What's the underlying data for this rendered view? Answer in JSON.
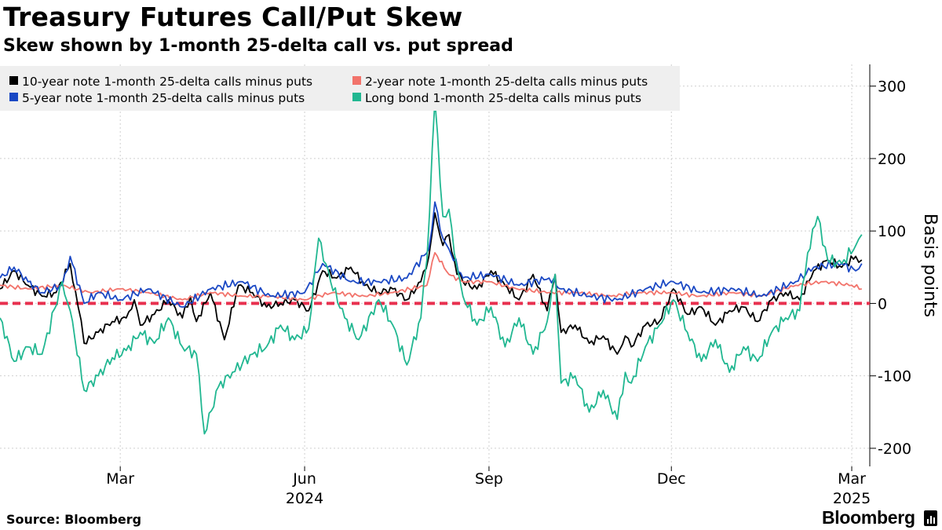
{
  "title": "Treasury Futures Call/Put Skew",
  "subtitle": "Skew shown by 1-month 25-delta call vs. put spread",
  "source": "Source: Bloomberg",
  "brand": "Bloomberg",
  "chart_data": {
    "type": "line",
    "ylabel": "Basis points",
    "ylim": [
      -225,
      330
    ],
    "yticks": [
      -200,
      -100,
      0,
      100,
      200,
      300
    ],
    "ytick_labels": [
      "-200",
      "-100",
      "0",
      "100",
      "200",
      "300"
    ],
    "x_domain": [
      "2024-01-01",
      "2025-03-10"
    ],
    "month_ticks": [
      {
        "date": "2024-03-01",
        "label": "Mar"
      },
      {
        "date": "2024-06-01",
        "label": "Jun"
      },
      {
        "date": "2024-09-01",
        "label": "Sep"
      },
      {
        "date": "2024-12-01",
        "label": "Dec"
      },
      {
        "date": "2025-03-01",
        "label": "Mar"
      }
    ],
    "year_ticks": [
      {
        "date": "2024-06-01",
        "label": "2024"
      },
      {
        "date": "2025-03-01",
        "label": "2025"
      }
    ],
    "reference_line": {
      "value": 0,
      "color": "#e8314f"
    },
    "legend_position": "top-left",
    "colors": {
      "ten_year": "#000000",
      "two_year": "#f2736b",
      "five_year": "#1a48c4",
      "long_bond": "#21b791"
    },
    "series": [
      {
        "name": "10-year note 1-month 25-delta calls minus puts",
        "color": "#000000",
        "points": [
          [
            "2024-01-01",
            20
          ],
          [
            "2024-01-08",
            45
          ],
          [
            "2024-01-15",
            25
          ],
          [
            "2024-01-22",
            10
          ],
          [
            "2024-01-29",
            15
          ],
          [
            "2024-02-05",
            55
          ],
          [
            "2024-02-09",
            -5
          ],
          [
            "2024-02-12",
            -55
          ],
          [
            "2024-02-19",
            -40
          ],
          [
            "2024-02-26",
            -25
          ],
          [
            "2024-03-04",
            -20
          ],
          [
            "2024-03-08",
            5
          ],
          [
            "2024-03-11",
            -30
          ],
          [
            "2024-03-18",
            -15
          ],
          [
            "2024-03-25",
            5
          ],
          [
            "2024-04-01",
            -20
          ],
          [
            "2024-04-05",
            10
          ],
          [
            "2024-04-08",
            -25
          ],
          [
            "2024-04-15",
            15
          ],
          [
            "2024-04-22",
            -50
          ],
          [
            "2024-04-29",
            25
          ],
          [
            "2024-05-06",
            15
          ],
          [
            "2024-05-13",
            -5
          ],
          [
            "2024-05-20",
            0
          ],
          [
            "2024-05-27",
            5
          ],
          [
            "2024-06-03",
            -10
          ],
          [
            "2024-06-10",
            45
          ],
          [
            "2024-06-17",
            35
          ],
          [
            "2024-06-24",
            50
          ],
          [
            "2024-07-01",
            25
          ],
          [
            "2024-07-08",
            15
          ],
          [
            "2024-07-15",
            20
          ],
          [
            "2024-07-22",
            5
          ],
          [
            "2024-07-29",
            30
          ],
          [
            "2024-08-02",
            65
          ],
          [
            "2024-08-05",
            125
          ],
          [
            "2024-08-09",
            80
          ],
          [
            "2024-08-12",
            95
          ],
          [
            "2024-08-16",
            40
          ],
          [
            "2024-08-19",
            30
          ],
          [
            "2024-08-26",
            20
          ],
          [
            "2024-09-02",
            45
          ],
          [
            "2024-09-09",
            25
          ],
          [
            "2024-09-16",
            5
          ],
          [
            "2024-09-23",
            40
          ],
          [
            "2024-09-30",
            -10
          ],
          [
            "2024-10-04",
            40
          ],
          [
            "2024-10-07",
            -40
          ],
          [
            "2024-10-14",
            -30
          ],
          [
            "2024-10-21",
            -55
          ],
          [
            "2024-10-28",
            -45
          ],
          [
            "2024-11-04",
            -70
          ],
          [
            "2024-11-08",
            -45
          ],
          [
            "2024-11-11",
            -60
          ],
          [
            "2024-11-18",
            -30
          ],
          [
            "2024-11-25",
            -25
          ],
          [
            "2024-12-02",
            20
          ],
          [
            "2024-12-09",
            -15
          ],
          [
            "2024-12-16",
            -5
          ],
          [
            "2024-12-23",
            -30
          ],
          [
            "2024-12-30",
            -10
          ],
          [
            "2025-01-06",
            -5
          ],
          [
            "2025-01-13",
            -25
          ],
          [
            "2025-01-20",
            5
          ],
          [
            "2025-01-27",
            15
          ],
          [
            "2025-02-03",
            5
          ],
          [
            "2025-02-10",
            45
          ],
          [
            "2025-02-17",
            60
          ],
          [
            "2025-02-24",
            50
          ],
          [
            "2025-03-03",
            65
          ],
          [
            "2025-03-06",
            60
          ]
        ]
      },
      {
        "name": "2-year note 1-month 25-delta calls minus puts",
        "color": "#f2736b",
        "points": [
          [
            "2024-01-01",
            25
          ],
          [
            "2024-01-15",
            20
          ],
          [
            "2024-02-01",
            25
          ],
          [
            "2024-02-15",
            15
          ],
          [
            "2024-03-01",
            20
          ],
          [
            "2024-03-15",
            15
          ],
          [
            "2024-04-01",
            5
          ],
          [
            "2024-04-15",
            15
          ],
          [
            "2024-05-01",
            10
          ],
          [
            "2024-05-15",
            10
          ],
          [
            "2024-06-01",
            5
          ],
          [
            "2024-06-15",
            15
          ],
          [
            "2024-07-01",
            10
          ],
          [
            "2024-07-15",
            15
          ],
          [
            "2024-08-01",
            25
          ],
          [
            "2024-08-05",
            70
          ],
          [
            "2024-08-12",
            40
          ],
          [
            "2024-08-19",
            30
          ],
          [
            "2024-09-01",
            30
          ],
          [
            "2024-09-15",
            20
          ],
          [
            "2024-10-01",
            15
          ],
          [
            "2024-10-15",
            15
          ],
          [
            "2024-11-01",
            10
          ],
          [
            "2024-11-15",
            15
          ],
          [
            "2024-12-01",
            15
          ],
          [
            "2024-12-15",
            10
          ],
          [
            "2025-01-01",
            15
          ],
          [
            "2025-01-15",
            10
          ],
          [
            "2025-02-01",
            25
          ],
          [
            "2025-02-15",
            30
          ],
          [
            "2025-03-01",
            25
          ],
          [
            "2025-03-06",
            20
          ]
        ]
      },
      {
        "name": "5-year note 1-month 25-delta calls minus puts",
        "color": "#1a48c4",
        "points": [
          [
            "2024-01-01",
            35
          ],
          [
            "2024-01-08",
            50
          ],
          [
            "2024-01-15",
            30
          ],
          [
            "2024-01-22",
            15
          ],
          [
            "2024-02-01",
            25
          ],
          [
            "2024-02-05",
            65
          ],
          [
            "2024-02-12",
            0
          ],
          [
            "2024-02-19",
            15
          ],
          [
            "2024-03-01",
            5
          ],
          [
            "2024-03-15",
            20
          ],
          [
            "2024-04-01",
            -5
          ],
          [
            "2024-04-15",
            20
          ],
          [
            "2024-05-01",
            30
          ],
          [
            "2024-05-15",
            10
          ],
          [
            "2024-06-01",
            15
          ],
          [
            "2024-06-10",
            55
          ],
          [
            "2024-06-24",
            30
          ],
          [
            "2024-07-08",
            30
          ],
          [
            "2024-07-22",
            35
          ],
          [
            "2024-08-02",
            75
          ],
          [
            "2024-08-05",
            140
          ],
          [
            "2024-08-09",
            90
          ],
          [
            "2024-08-12",
            75
          ],
          [
            "2024-08-19",
            35
          ],
          [
            "2024-09-02",
            40
          ],
          [
            "2024-09-16",
            25
          ],
          [
            "2024-10-01",
            35
          ],
          [
            "2024-10-07",
            20
          ],
          [
            "2024-10-21",
            10
          ],
          [
            "2024-11-04",
            5
          ],
          [
            "2024-11-18",
            20
          ],
          [
            "2024-12-02",
            30
          ],
          [
            "2024-12-16",
            15
          ],
          [
            "2025-01-01",
            20
          ],
          [
            "2025-01-15",
            10
          ],
          [
            "2025-02-01",
            30
          ],
          [
            "2025-02-10",
            50
          ],
          [
            "2025-02-24",
            55
          ],
          [
            "2025-03-03",
            45
          ],
          [
            "2025-03-06",
            55
          ]
        ]
      },
      {
        "name": "Long bond 1-month 25-delta calls minus puts",
        "color": "#21b791",
        "points": [
          [
            "2024-01-01",
            -20
          ],
          [
            "2024-01-08",
            -80
          ],
          [
            "2024-01-15",
            -60
          ],
          [
            "2024-01-22",
            -70
          ],
          [
            "2024-02-01",
            30
          ],
          [
            "2024-02-05",
            -10
          ],
          [
            "2024-02-12",
            -120
          ],
          [
            "2024-02-19",
            -100
          ],
          [
            "2024-02-26",
            -75
          ],
          [
            "2024-03-04",
            -65
          ],
          [
            "2024-03-11",
            -40
          ],
          [
            "2024-03-18",
            -55
          ],
          [
            "2024-03-25",
            -20
          ],
          [
            "2024-04-01",
            -60
          ],
          [
            "2024-04-08",
            -70
          ],
          [
            "2024-04-12",
            -180
          ],
          [
            "2024-04-19",
            -115
          ],
          [
            "2024-04-26",
            -95
          ],
          [
            "2024-05-06",
            -70
          ],
          [
            "2024-05-13",
            -60
          ],
          [
            "2024-05-20",
            -30
          ],
          [
            "2024-05-27",
            -50
          ],
          [
            "2024-06-03",
            -35
          ],
          [
            "2024-06-08",
            90
          ],
          [
            "2024-06-14",
            30
          ],
          [
            "2024-06-21",
            -20
          ],
          [
            "2024-06-28",
            -50
          ],
          [
            "2024-07-08",
            5
          ],
          [
            "2024-07-15",
            -30
          ],
          [
            "2024-07-22",
            -85
          ],
          [
            "2024-07-29",
            -20
          ],
          [
            "2024-08-01",
            60
          ],
          [
            "2024-08-05",
            280
          ],
          [
            "2024-08-09",
            120
          ],
          [
            "2024-08-12",
            130
          ],
          [
            "2024-08-16",
            50
          ],
          [
            "2024-08-19",
            10
          ],
          [
            "2024-08-26",
            -30
          ],
          [
            "2024-09-02",
            -5
          ],
          [
            "2024-09-09",
            -60
          ],
          [
            "2024-09-16",
            -20
          ],
          [
            "2024-09-23",
            -70
          ],
          [
            "2024-09-30",
            -25
          ],
          [
            "2024-10-04",
            40
          ],
          [
            "2024-10-07",
            -110
          ],
          [
            "2024-10-14",
            -100
          ],
          [
            "2024-10-21",
            -150
          ],
          [
            "2024-10-28",
            -120
          ],
          [
            "2024-11-04",
            -160
          ],
          [
            "2024-11-08",
            -95
          ],
          [
            "2024-11-11",
            -110
          ],
          [
            "2024-11-18",
            -60
          ],
          [
            "2024-11-25",
            -30
          ],
          [
            "2024-12-02",
            5
          ],
          [
            "2024-12-09",
            -40
          ],
          [
            "2024-12-16",
            -80
          ],
          [
            "2024-12-23",
            -50
          ],
          [
            "2024-12-30",
            -95
          ],
          [
            "2025-01-06",
            -60
          ],
          [
            "2025-01-13",
            -80
          ],
          [
            "2025-01-20",
            -40
          ],
          [
            "2025-01-27",
            -20
          ],
          [
            "2025-02-03",
            -10
          ],
          [
            "2025-02-07",
            70
          ],
          [
            "2025-02-12",
            120
          ],
          [
            "2025-02-17",
            60
          ],
          [
            "2025-02-24",
            55
          ],
          [
            "2025-03-03",
            80
          ],
          [
            "2025-03-06",
            95
          ]
        ]
      }
    ]
  }
}
